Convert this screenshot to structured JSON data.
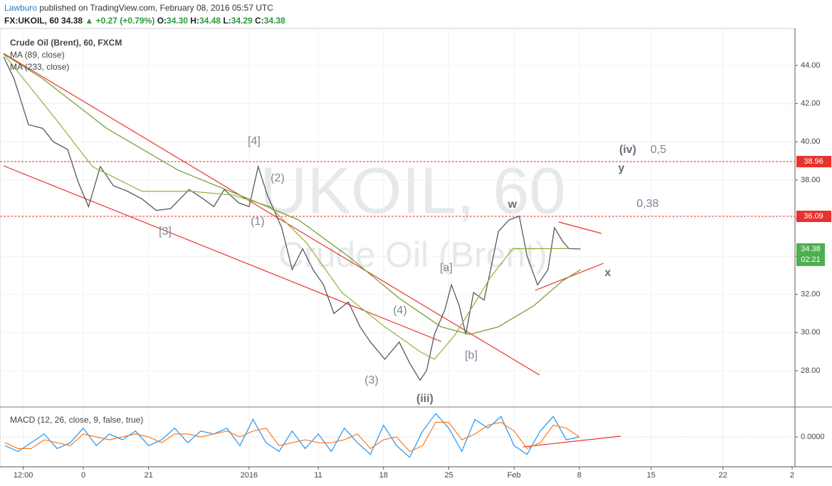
{
  "header": {
    "author": "Lawburo",
    "published": "published on TradingView.com, February 08, 2016 05:57 UTC",
    "symbol": "FX:UKOIL, 60",
    "last": "34.38",
    "change": "▲ +0.27 (+0.79%)",
    "open_label": "O:",
    "open": "34.30",
    "high_label": "H:",
    "high": "34.48",
    "low_label": "L:",
    "low": "34.29",
    "close_label": "C:",
    "close": "34.38"
  },
  "chart_data": [
    {
      "type": "line",
      "watermark_symbol": "UKOIL, 60",
      "watermark_name": "Crude Oil (Brent)",
      "xlim": [
        -6.38,
        54.52
      ],
      "ylim": [
        26.17,
        45.94
      ],
      "grid": true,
      "yticks": [
        {
          "value": 28,
          "label": "28.00"
        },
        {
          "value": 30,
          "label": "30.00"
        },
        {
          "value": 32,
          "label": "32.00"
        },
        {
          "value": 34,
          "label": "34.00"
        },
        {
          "value": 36,
          "label": "36.00"
        },
        {
          "value": 38,
          "label": "38.00"
        },
        {
          "value": 40,
          "label": "40.00"
        },
        {
          "value": 42,
          "label": "42.00"
        },
        {
          "value": 44,
          "label": "44.00"
        }
      ],
      "levels": [
        {
          "value": 38.96,
          "color": "#e8322b"
        },
        {
          "value": 36.09,
          "color": "#e8322b"
        }
      ],
      "last_price": 34.38,
      "last_color": "#4caf50",
      "countdown": "02:21",
      "annotations": [
        "[4]",
        "(2)",
        "[3]",
        "(1)",
        "[a]",
        "(4)",
        "[b]",
        "(3)",
        "(iii)",
        "w",
        "(iv)",
        "0,5",
        "y",
        "0,38",
        "x"
      ],
      "series": [
        {
          "name": "Crude Oil (Brent), 60, FXCM",
          "color": "#555a60",
          "x": [
            -6.1,
            -5.3,
            -4.2,
            -3.1,
            -2.3,
            -1.2,
            -0.4,
            0.4,
            1.3,
            2.3,
            3.4,
            4.5,
            5.6,
            6.7,
            8.1,
            9.2,
            10.0,
            10.8,
            11.9,
            12.7,
            13.4,
            14.1,
            15.2,
            16.0,
            16.8,
            17.6,
            18.4,
            19.2,
            20.3,
            21.2,
            22.0,
            23.1,
            24.2,
            25.0,
            25.8,
            26.3,
            26.9,
            27.7,
            28.2,
            28.8,
            29.3,
            29.9,
            30.7,
            31.2,
            31.8,
            32.6,
            33.4,
            34.0,
            34.8,
            35.6,
            36.1,
            36.7,
            37.2,
            38.1
          ],
          "values": [
            44.45,
            43.3,
            40.9,
            40.7,
            40.0,
            39.6,
            37.9,
            36.6,
            38.7,
            37.7,
            37.4,
            37.0,
            36.4,
            36.5,
            37.5,
            37.0,
            36.6,
            37.5,
            36.8,
            36.6,
            38.7,
            37.2,
            35.5,
            33.3,
            34.4,
            33.3,
            32.5,
            31.0,
            31.6,
            30.3,
            29.5,
            28.6,
            29.5,
            28.4,
            27.5,
            28.0,
            29.9,
            31.2,
            32.5,
            31.4,
            29.9,
            32.1,
            31.7,
            33.3,
            35.3,
            35.9,
            36.1,
            34.0,
            32.5,
            33.3,
            35.5,
            34.8,
            34.4,
            34.38
          ]
        },
        {
          "name": "MA (89, close)",
          "color": "#8fb23a",
          "x": [
            -6.1,
            -2.0,
            0.7,
            4.5,
            8.3,
            11.5,
            14.3,
            17.1,
            19.8,
            23.1,
            25.8,
            26.9,
            28.5,
            31.2,
            32.9,
            35.0,
            37.2
          ],
          "values": [
            44.6,
            41.1,
            38.7,
            37.4,
            37.4,
            37.2,
            36.6,
            34.7,
            32.1,
            30.3,
            29.0,
            28.6,
            29.9,
            32.9,
            34.4,
            34.4,
            34.4
          ]
        },
        {
          "name": "MA (233, close)",
          "color": "#6e9a2f",
          "x": [
            -6.1,
            -3.1,
            1.8,
            7.3,
            12.7,
            16.5,
            20.3,
            24.2,
            27.4,
            29.6,
            31.8,
            34.5,
            36.7,
            38.1
          ],
          "values": [
            44.6,
            43.3,
            40.7,
            38.5,
            37.0,
            35.9,
            34.0,
            31.8,
            30.3,
            29.9,
            30.3,
            31.4,
            32.7,
            33.3
          ]
        }
      ]
    },
    {
      "type": "line",
      "name": "MACD (12, 26, close, 9, false, true)",
      "xlim": [
        -6.38,
        54.52
      ],
      "ylim": [
        -1,
        1
      ],
      "yticks": [
        {
          "value": 0,
          "label": "0.0000"
        }
      ],
      "xticks": [
        {
          "value": -4.6,
          "label": "12:00"
        },
        0,
        {
          "value": 5,
          "label": "21"
        },
        {
          "value": 12.7,
          "label": "2016"
        },
        {
          "value": 18,
          "label": "11"
        },
        {
          "value": 23,
          "label": "18"
        },
        {
          "value": 28,
          "label": "25"
        },
        {
          "value": 33,
          "label": "Feb"
        },
        {
          "value": 38,
          "label": "8"
        },
        {
          "value": 43.5,
          "label": "15"
        },
        {
          "value": 49,
          "label": "22"
        },
        {
          "value": 54.3,
          "label": "2"
        }
      ],
      "series": [
        {
          "color": "#2196f3",
          "x": [
            -6,
            -5,
            -4,
            -3,
            -2,
            -1,
            0,
            1,
            2,
            3,
            4,
            5,
            6,
            7,
            8,
            9,
            10,
            11,
            12,
            13,
            14,
            15,
            16,
            17,
            18,
            19,
            20,
            21,
            22,
            23,
            24,
            25,
            26,
            27,
            28,
            29,
            30,
            31,
            32,
            33,
            34,
            35,
            36,
            37,
            38
          ],
          "values": [
            -0.3,
            -0.5,
            -0.2,
            0.1,
            -0.4,
            -0.2,
            0.3,
            -0.3,
            0.1,
            -0.1,
            0.2,
            -0.3,
            -0.1,
            0.3,
            -0.2,
            0.2,
            0.1,
            0.3,
            -0.3,
            0.6,
            -0.2,
            -0.5,
            0.2,
            -0.4,
            0.1,
            -0.5,
            0.3,
            -0.2,
            -0.6,
            0.4,
            -0.3,
            -0.7,
            0.2,
            0.8,
            0.3,
            -0.5,
            0.6,
            0.3,
            0.7,
            -0.3,
            -0.6,
            0.2,
            0.7,
            -0.1,
            0.0
          ]
        },
        {
          "color": "#ff7a1a",
          "x": [
            -6,
            -5,
            -4,
            -3,
            -2,
            -1,
            0,
            1,
            2,
            3,
            4,
            5,
            6,
            7,
            8,
            9,
            10,
            11,
            12,
            13,
            14,
            15,
            16,
            17,
            18,
            19,
            20,
            21,
            22,
            23,
            24,
            25,
            26,
            27,
            28,
            29,
            30,
            31,
            32,
            33,
            34,
            35,
            36,
            37,
            38
          ],
          "values": [
            -0.2,
            -0.4,
            -0.4,
            -0.1,
            -0.2,
            -0.3,
            0.1,
            0.0,
            -0.1,
            0.0,
            0.1,
            0.0,
            -0.2,
            0.1,
            0.1,
            0.0,
            0.1,
            0.2,
            0.0,
            0.2,
            0.3,
            -0.3,
            -0.2,
            -0.1,
            -0.2,
            -0.2,
            -0.1,
            0.1,
            -0.4,
            -0.1,
            0.0,
            -0.5,
            -0.3,
            0.5,
            0.5,
            -0.1,
            0.1,
            0.4,
            0.5,
            0.2,
            -0.4,
            -0.2,
            0.4,
            0.3,
            0.0
          ]
        }
      ]
    }
  ]
}
